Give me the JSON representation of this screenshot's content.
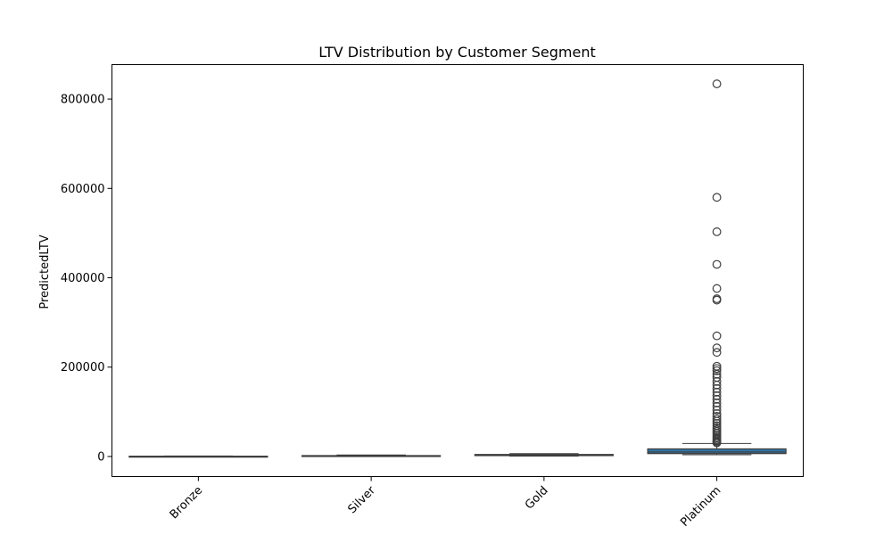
{
  "chart_data": {
    "type": "box",
    "title": "LTV Distribution by Customer Segment",
    "xlabel": "",
    "ylabel": "PredictedLTV",
    "categories": [
      "Bronze",
      "Silver",
      "Gold",
      "Platinum"
    ],
    "ylim": [
      -45000,
      877000
    ],
    "yticks": [
      0,
      200000,
      400000,
      600000,
      800000
    ],
    "ytick_labels": [
      "0",
      "200000",
      "400000",
      "600000",
      "800000"
    ],
    "grid": false,
    "legend": "none",
    "box_color": "#3274a1",
    "edge_color": "#3d3d3d",
    "boxes": [
      {
        "category": "Bronze",
        "min": 0,
        "q1": 100,
        "median": 300,
        "q3": 600,
        "max": 1200,
        "outliers": []
      },
      {
        "category": "Silver",
        "min": 200,
        "q1": 600,
        "median": 1200,
        "q3": 2000,
        "max": 3500,
        "outliers": []
      },
      {
        "category": "Gold",
        "min": 800,
        "q1": 2000,
        "median": 3200,
        "q3": 4500,
        "max": 6500,
        "outliers": []
      },
      {
        "category": "Platinum",
        "min": 4000,
        "q1": 6500,
        "median": 10000,
        "q3": 17000,
        "max": 29000,
        "outliers": [
          834000,
          580000,
          503000,
          430000,
          376000,
          353000,
          350000,
          270000,
          243000,
          233000,
          202000,
          197000,
          192000,
          184000,
          177000,
          168000,
          160000,
          152000,
          144000,
          136000,
          128000,
          120000,
          112000,
          104000,
          96000,
          90000,
          84000,
          79000,
          74000,
          69000,
          64000,
          60000,
          56000,
          52000,
          48000,
          44000,
          41000,
          38000,
          35000,
          32500,
          30500
        ]
      }
    ]
  }
}
